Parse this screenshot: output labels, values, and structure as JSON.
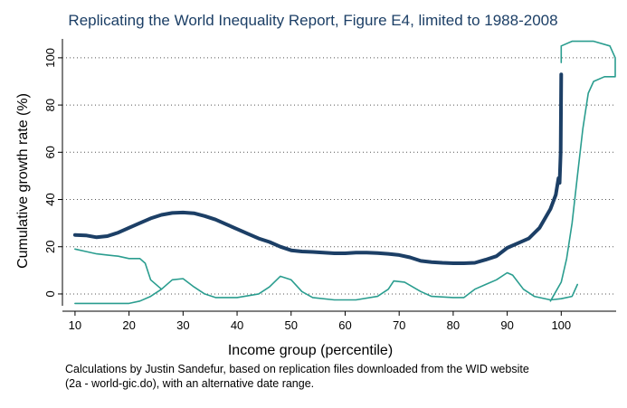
{
  "chart_data": {
    "type": "line",
    "title": "Replicating the World Inequality Report, Figure E4, limited to 1988-2008",
    "x_label": "Income group (percentile)",
    "y_label": "Cumulative growth rate (%)",
    "note": [
      "Calculations by Justin Sandefur, based on replication files downloaded from the WID website",
      "(2a - world-gic.do), with an alternative date range."
    ],
    "xlim": [
      7,
      111
    ],
    "ylim": [
      -5,
      108
    ],
    "xticks": [
      10,
      20,
      30,
      40,
      50,
      60,
      70,
      80,
      90,
      100
    ],
    "yticks": [
      0,
      20,
      40,
      60,
      80,
      100
    ],
    "grid": true,
    "series": [
      {
        "color": "#1c3f66",
        "width": 4,
        "x": [
          10,
          12,
          14,
          16,
          18,
          20,
          22,
          24,
          26,
          28,
          30,
          32,
          34,
          36,
          38,
          40,
          42,
          44,
          46,
          48,
          50,
          52,
          54,
          56,
          58,
          60,
          62,
          64,
          66,
          68,
          70,
          72,
          74,
          76,
          78,
          80,
          82,
          84,
          86,
          88,
          90,
          92,
          94,
          96,
          98,
          99,
          99.5,
          99.7,
          99.9,
          100
        ],
        "values": [
          25,
          24.8,
          24,
          24.5,
          26,
          28,
          30,
          32,
          33.5,
          34.3,
          34.5,
          34.2,
          33,
          31.5,
          29.5,
          27.5,
          25.5,
          23.5,
          22,
          20,
          18.5,
          18,
          17.8,
          17.5,
          17.2,
          17.2,
          17.5,
          17.5,
          17.3,
          17,
          16.5,
          15.5,
          14,
          13.5,
          13.2,
          13,
          13,
          13.2,
          14.5,
          16,
          19.5,
          21.5,
          23.5,
          28,
          36,
          42,
          49,
          47,
          60,
          93
        ]
      },
      {
        "color": "#2a9d8f",
        "width": 1.6,
        "x": [
          10,
          12,
          14,
          16,
          18,
          20,
          22,
          23,
          24,
          26,
          null,
          10,
          20,
          22,
          24,
          26,
          28,
          30,
          32,
          34,
          36,
          40,
          44,
          46,
          48,
          50,
          52,
          54,
          58,
          62,
          66,
          68,
          69,
          71,
          74,
          76,
          80,
          82,
          84,
          86,
          88,
          90,
          91,
          93,
          95,
          98,
          100,
          102,
          103,
          null,
          98,
          100,
          101,
          102,
          103,
          104,
          105,
          106,
          108,
          110,
          110,
          109,
          106,
          102,
          100,
          100
        ],
        "values": [
          19,
          18,
          17,
          16.5,
          16,
          15,
          15,
          13,
          6,
          2,
          null,
          -4,
          -4,
          -3,
          -1,
          2,
          6,
          6.5,
          3,
          0,
          -1.5,
          -1.5,
          0,
          3,
          7.5,
          6,
          1,
          -1.5,
          -2.5,
          -2.5,
          -1,
          2,
          5.5,
          5,
          1,
          -1,
          -1.5,
          -1.5,
          2,
          4,
          6,
          9,
          8,
          2,
          -1,
          -2.5,
          -2,
          -1,
          4,
          null,
          -3,
          5,
          15,
          30,
          50,
          70,
          85,
          90,
          92,
          92,
          100,
          105,
          107,
          107,
          105,
          98
        ]
      }
    ]
  }
}
